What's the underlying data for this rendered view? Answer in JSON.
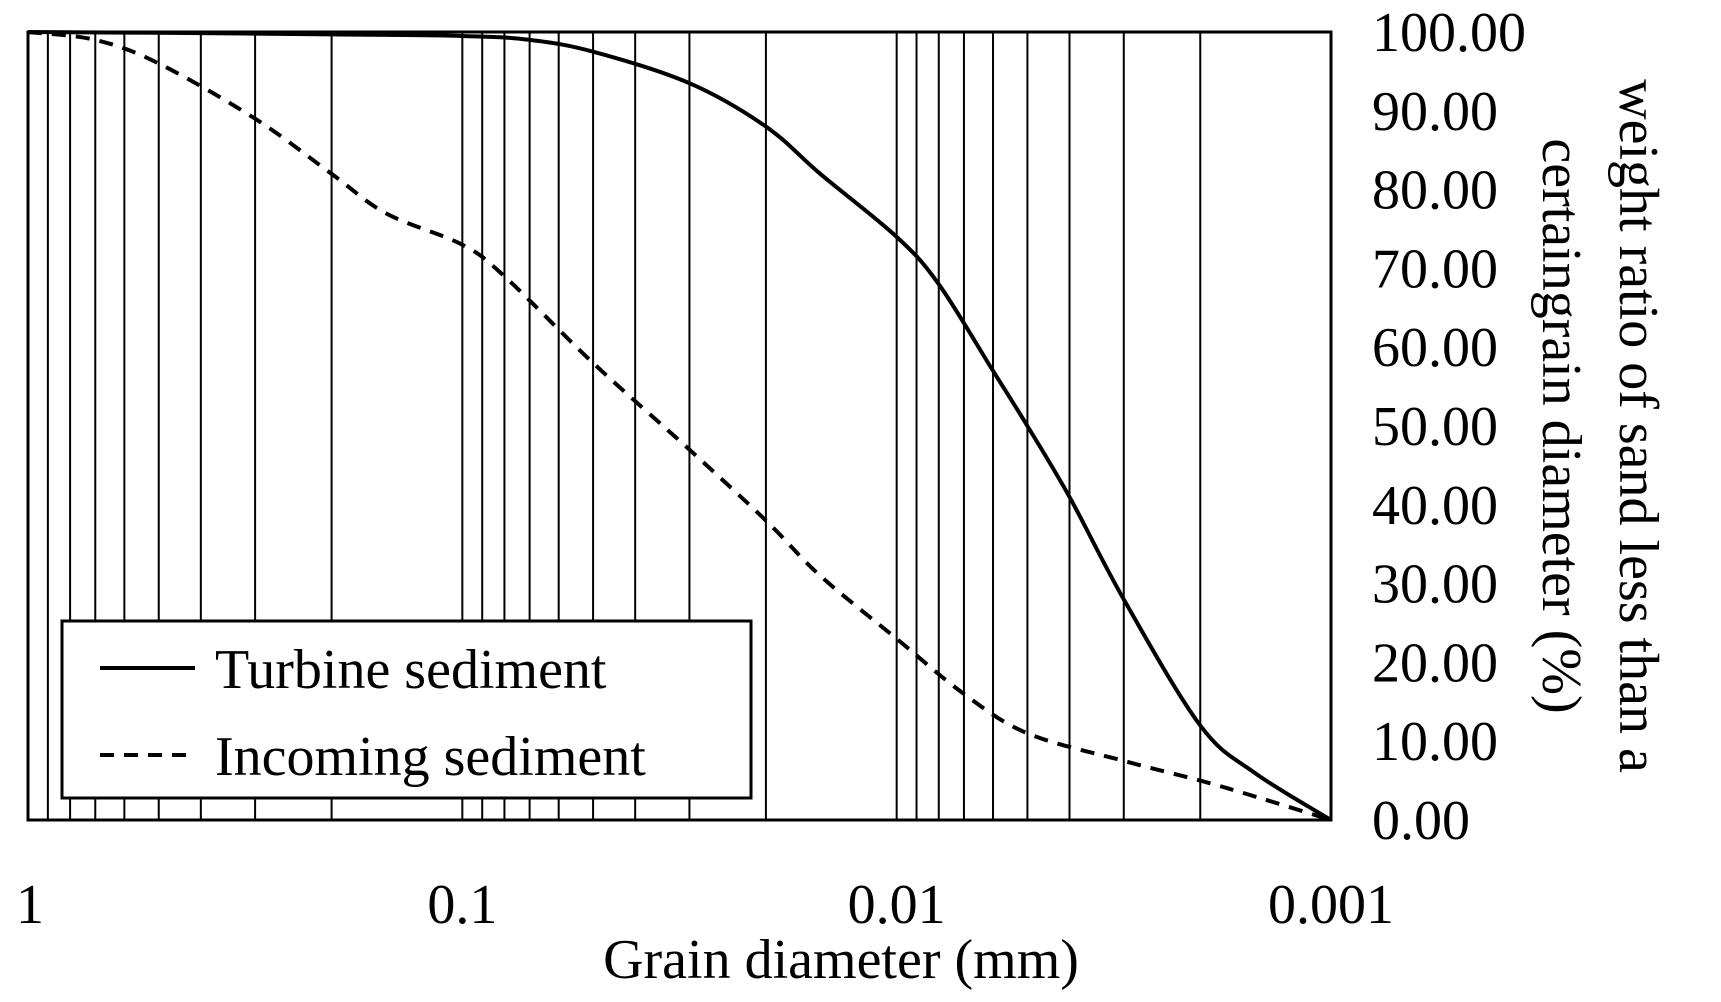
{
  "chart_data": {
    "type": "line",
    "title": "",
    "xlabel": "Grain diameter (mm)",
    "ylabel": "weight ratio of sand less than a certaingrain diameter (%)",
    "ylabel_lines": [
      "weight ratio of sand less than a",
      "certaingrain diameter (%)"
    ],
    "x_scale": "log",
    "x_reversed": true,
    "xlim": [
      1,
      0.001
    ],
    "ylim": [
      0,
      100
    ],
    "y_axis_side": "right",
    "grid": "vertical log gridlines",
    "x_ticks": [
      1,
      0.1,
      0.01,
      0.001
    ],
    "x_tick_labels": [
      "1",
      "0.1",
      "0.01",
      "0.001"
    ],
    "y_ticks": [
      0,
      10,
      20,
      30,
      40,
      50,
      60,
      70,
      80,
      90,
      100
    ],
    "y_tick_labels": [
      "0.00",
      "10.00",
      "20.00",
      "30.00",
      "40.00",
      "50.00",
      "60.00",
      "70.00",
      "80.00",
      "90.00",
      "100.00"
    ],
    "legend_position": "bottom-left",
    "series": [
      {
        "name": "Turbine sediment",
        "style": "solid",
        "x": [
          1,
          0.5,
          0.2,
          0.1,
          0.07,
          0.05,
          0.03,
          0.02,
          0.015,
          0.01,
          0.008,
          0.006,
          0.005,
          0.004,
          0.003,
          0.002,
          0.0015,
          0.001
        ],
        "y": [
          100,
          99.9,
          99.7,
          99.5,
          99,
          97.5,
          93.5,
          88,
          82,
          74,
          68,
          57,
          50,
          41,
          28,
          12,
          6,
          0
        ]
      },
      {
        "name": "Incoming sediment",
        "style": "dashed",
        "x": [
          1,
          0.7,
          0.5,
          0.3,
          0.2,
          0.15,
          0.1,
          0.08,
          0.05,
          0.03,
          0.02,
          0.015,
          0.01,
          0.007,
          0.005,
          0.003,
          0.002,
          0.0015,
          0.001
        ],
        "y": [
          100,
          99,
          96,
          89,
          82,
          77,
          73,
          69,
          58,
          47,
          38,
          31,
          23,
          16,
          11,
          7.5,
          5,
          3,
          0
        ]
      }
    ]
  },
  "colors": {
    "line": "#000000",
    "background": "#ffffff"
  }
}
